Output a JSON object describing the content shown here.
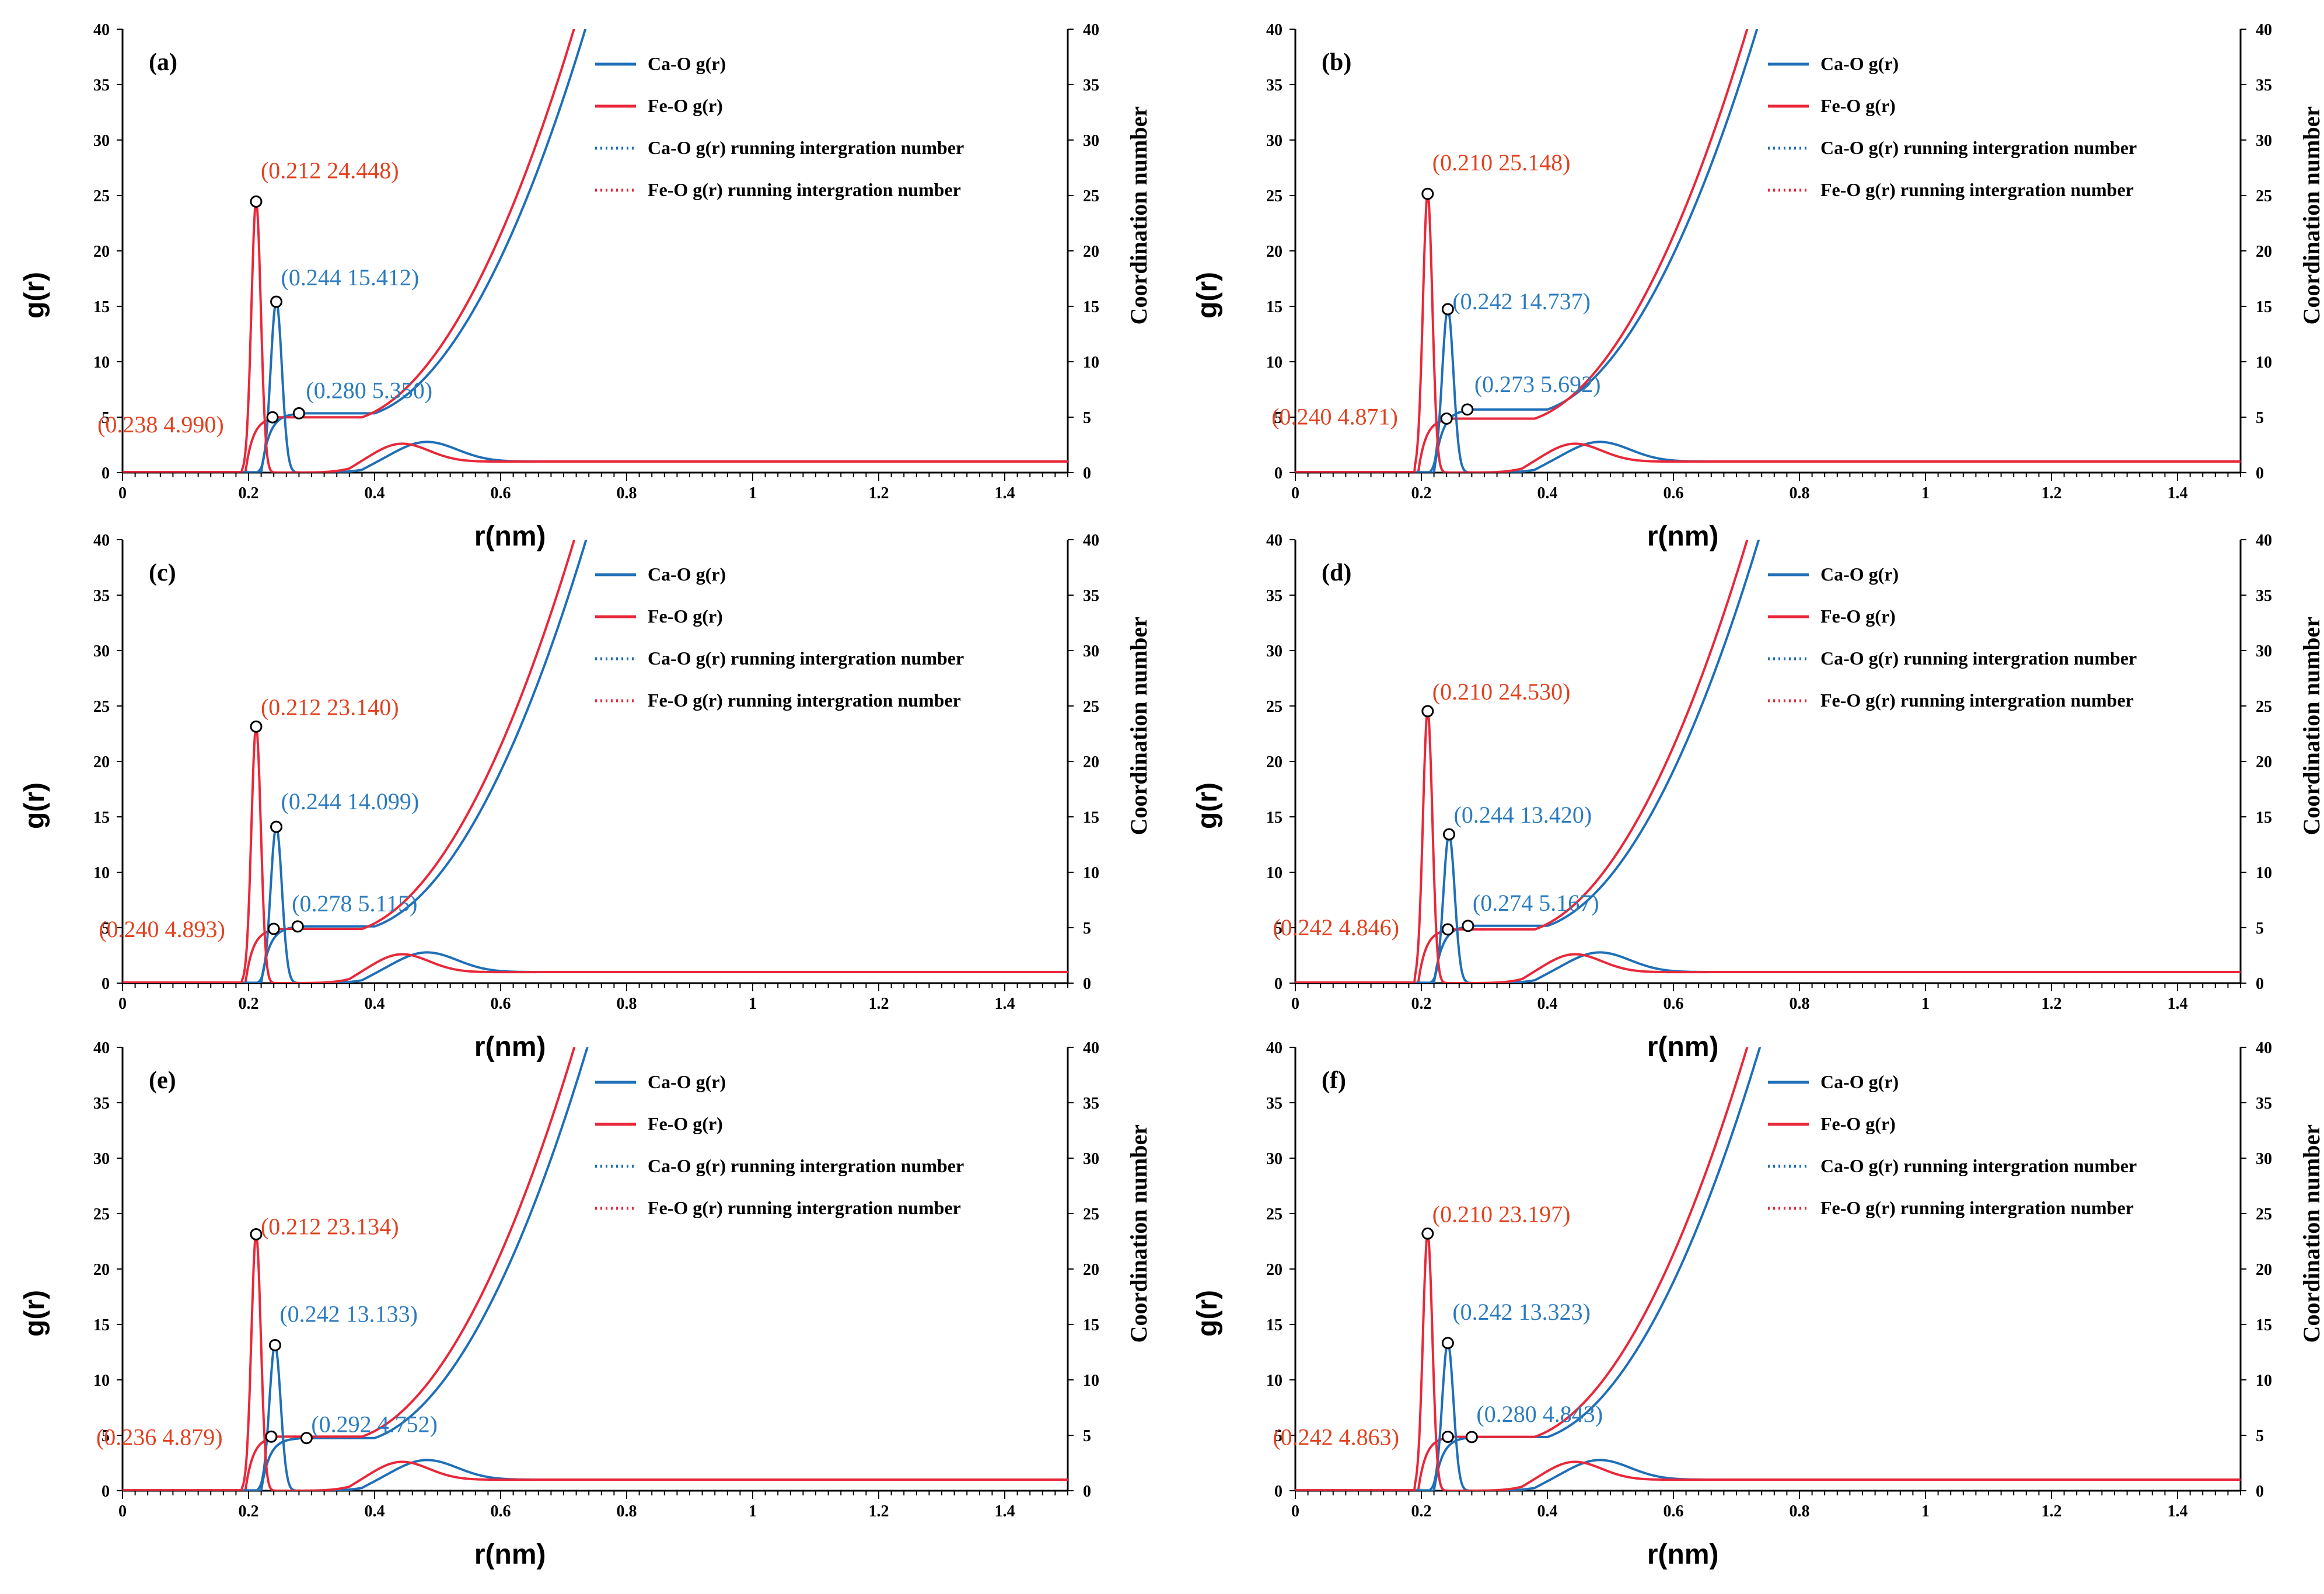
{
  "colors": {
    "ca": "#1f6fb8",
    "fe": "#e8283a",
    "annot_ca": "#2b7bbf",
    "annot_fe": "#e2411f",
    "axis": "#000000"
  },
  "chart_data": [
    {
      "type": "line",
      "panel_label": "(a)",
      "xlabel": "r(nm)",
      "ylabel": "g(r)",
      "y2label": "Coordination number",
      "xlim": [
        0,
        1.5
      ],
      "ylim": [
        0,
        40
      ],
      "y2lim": [
        0,
        40
      ],
      "x_ticks": [
        "0",
        "0.2",
        "0.4",
        "0.6",
        "0.8",
        "1",
        "1.2",
        "1.4"
      ],
      "y_ticks": [
        "0",
        "5",
        "10",
        "15",
        "20",
        "25",
        "30",
        "35",
        "40"
      ],
      "legend": [
        "Ca-O g(r)",
        "Fe-O g(r)",
        "Ca-O g(r) running intergration number",
        "Fe-O g(r) running intergration number"
      ],
      "series": [
        {
          "name": "Ca-O g(r)",
          "peak": [
            0.244,
            15.412
          ]
        },
        {
          "name": "Fe-O g(r)",
          "peak": [
            0.212,
            24.448
          ]
        },
        {
          "name": "Ca-O g(r) running intergration number",
          "point": [
            0.28,
            5.35
          ]
        },
        {
          "name": "Fe-O g(r) running intergration number",
          "point": [
            0.238,
            4.99
          ]
        }
      ],
      "annotations": [
        "(0.212 24.448)",
        "(0.244 15.412)",
        "(0.280 5.350)",
        "(0.238 4.990)"
      ]
    },
    {
      "type": "line",
      "panel_label": "(b)",
      "xlabel": "r(nm)",
      "ylabel": "g(r)",
      "y2label": "Coordination number",
      "xlim": [
        0,
        1.5
      ],
      "ylim": [
        0,
        40
      ],
      "y2lim": [
        0,
        40
      ],
      "x_ticks": [
        "0",
        "0.2",
        "0.4",
        "0.6",
        "0.8",
        "1",
        "1.2",
        "1.4"
      ],
      "y_ticks": [
        "0",
        "5",
        "10",
        "15",
        "20",
        "25",
        "30",
        "35",
        "40"
      ],
      "legend": [
        "Ca-O g(r)",
        "Fe-O g(r)",
        "Ca-O g(r) running intergration number",
        "Fe-O g(r) running intergration number"
      ],
      "series": [
        {
          "name": "Ca-O g(r)",
          "peak": [
            0.242,
            14.737
          ]
        },
        {
          "name": "Fe-O g(r)",
          "peak": [
            0.21,
            25.148
          ]
        },
        {
          "name": "Ca-O g(r) running intergration number",
          "point": [
            0.273,
            5.692
          ]
        },
        {
          "name": "Fe-O g(r) running intergration number",
          "point": [
            0.24,
            4.871
          ]
        }
      ],
      "annotations": [
        "(0.210 25.148)",
        "(0.242 14.737)",
        "(0.273 5.692)",
        "(0.240 4.871)"
      ]
    },
    {
      "type": "line",
      "panel_label": "(c)",
      "xlabel": "r(nm)",
      "ylabel": "g(r)",
      "y2label": "Coordination number",
      "xlim": [
        0,
        1.5
      ],
      "ylim": [
        0,
        40
      ],
      "y2lim": [
        0,
        40
      ],
      "x_ticks": [
        "0",
        "0.2",
        "0.4",
        "0.6",
        "0.8",
        "1",
        "1.2",
        "1.4"
      ],
      "y_ticks": [
        "0",
        "5",
        "10",
        "15",
        "20",
        "25",
        "30",
        "35",
        "40"
      ],
      "legend": [
        "Ca-O g(r)",
        "Fe-O g(r)",
        "Ca-O g(r) running intergration number",
        "Fe-O g(r) running intergration number"
      ],
      "series": [
        {
          "name": "Ca-O g(r)",
          "peak": [
            0.244,
            14.099
          ]
        },
        {
          "name": "Fe-O g(r)",
          "peak": [
            0.212,
            23.14
          ]
        },
        {
          "name": "Ca-O g(r) running intergration number",
          "point": [
            0.278,
            5.115
          ]
        },
        {
          "name": "Fe-O g(r) running intergration number",
          "point": [
            0.24,
            4.893
          ]
        }
      ],
      "annotations": [
        "(0.212 23.140)",
        "(0.244 14.099)",
        "(0.278 5.115)",
        "(0.240 4.893)"
      ]
    },
    {
      "type": "line",
      "panel_label": "(d)",
      "xlabel": "r(nm)",
      "ylabel": "g(r)",
      "y2label": "Coordination number",
      "xlim": [
        0,
        1.5
      ],
      "ylim": [
        0,
        40
      ],
      "y2lim": [
        0,
        40
      ],
      "x_ticks": [
        "0",
        "0.2",
        "0.4",
        "0.6",
        "0.8",
        "1",
        "1.2",
        "1.4"
      ],
      "y_ticks": [
        "0",
        "5",
        "10",
        "15",
        "20",
        "25",
        "30",
        "35",
        "40"
      ],
      "legend": [
        "Ca-O g(r)",
        "Fe-O g(r)",
        "Ca-O g(r) running intergration number",
        "Fe-O g(r) running intergration number"
      ],
      "series": [
        {
          "name": "Ca-O g(r)",
          "peak": [
            0.244,
            13.42
          ]
        },
        {
          "name": "Fe-O g(r)",
          "peak": [
            0.21,
            24.53
          ]
        },
        {
          "name": "Ca-O g(r) running intergration number",
          "point": [
            0.274,
            5.167
          ]
        },
        {
          "name": "Fe-O g(r) running intergration number",
          "point": [
            0.242,
            4.846
          ]
        }
      ],
      "annotations": [
        "(0.210 24.530)",
        "(0.244 13.420)",
        "(0.274 5.167)",
        "(0.242 4.846)"
      ]
    },
    {
      "type": "line",
      "panel_label": "(e)",
      "xlabel": "r(nm)",
      "ylabel": "g(r)",
      "y2label": "Coordination number",
      "xlim": [
        0,
        1.5
      ],
      "ylim": [
        0,
        40
      ],
      "y2lim": [
        0,
        40
      ],
      "x_ticks": [
        "0",
        "0.2",
        "0.4",
        "0.6",
        "0.8",
        "1",
        "1.2",
        "1.4"
      ],
      "y_ticks": [
        "0",
        "5",
        "10",
        "15",
        "20",
        "25",
        "30",
        "35",
        "40"
      ],
      "legend": [
        "Ca-O g(r)",
        "Fe-O g(r)",
        "Ca-O g(r) running intergration number",
        "Fe-O g(r) running intergration number"
      ],
      "series": [
        {
          "name": "Ca-O g(r)",
          "peak": [
            0.242,
            13.133
          ]
        },
        {
          "name": "Fe-O g(r)",
          "peak": [
            0.212,
            23.134
          ]
        },
        {
          "name": "Ca-O g(r) running intergration number",
          "point": [
            0.292,
            4.752
          ]
        },
        {
          "name": "Fe-O g(r) running intergration number",
          "point": [
            0.236,
            4.879
          ]
        }
      ],
      "annotations": [
        "(0.212 23.134)",
        "(0.242 13.133)",
        "(0.292 4.752)",
        "(0.236 4.879)"
      ]
    },
    {
      "type": "line",
      "panel_label": "(f)",
      "xlabel": "r(nm)",
      "ylabel": "g(r)",
      "y2label": "Coordination number",
      "xlim": [
        0,
        1.5
      ],
      "ylim": [
        0,
        40
      ],
      "y2lim": [
        0,
        40
      ],
      "x_ticks": [
        "0",
        "0.2",
        "0.4",
        "0.6",
        "0.8",
        "1",
        "1.2",
        "1.4"
      ],
      "y_ticks": [
        "0",
        "5",
        "10",
        "15",
        "20",
        "25",
        "30",
        "35",
        "40"
      ],
      "legend": [
        "Ca-O g(r)",
        "Fe-O g(r)",
        "Ca-O g(r) running intergration number",
        "Fe-O g(r) running intergration number"
      ],
      "series": [
        {
          "name": "Ca-O g(r)",
          "peak": [
            0.242,
            13.323
          ]
        },
        {
          "name": "Fe-O g(r)",
          "peak": [
            0.21,
            23.197
          ]
        },
        {
          "name": "Ca-O g(r) running intergration number",
          "point": [
            0.28,
            4.843
          ]
        },
        {
          "name": "Fe-O g(r) running intergration number",
          "point": [
            0.242,
            4.863
          ]
        }
      ],
      "annotations": [
        "(0.210 23.197)",
        "(0.242 13.323)",
        "(0.280 4.843)",
        "(0.242 4.863)"
      ]
    }
  ]
}
